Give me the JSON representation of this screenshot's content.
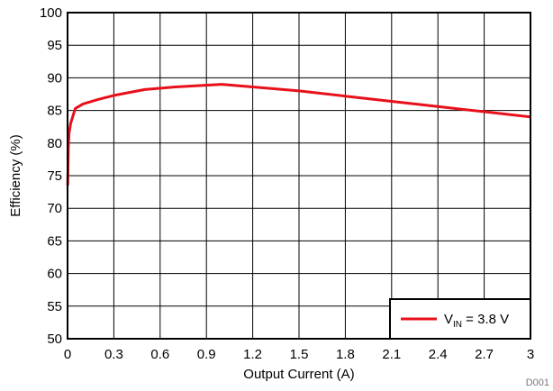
{
  "chart_data": {
    "type": "line",
    "xlabel": "Output Current (A)",
    "ylabel": "Efficiency (%)",
    "xlim": [
      0,
      3
    ],
    "ylim": [
      50,
      100
    ],
    "xticks": [
      "0",
      "0.3",
      "0.6",
      "0.9",
      "1.2",
      "1.5",
      "1.8",
      "2.1",
      "2.4",
      "2.7",
      "3"
    ],
    "yticks": [
      "50",
      "55",
      "60",
      "65",
      "70",
      "75",
      "80",
      "85",
      "90",
      "95",
      "100"
    ],
    "grid": true,
    "legend_position": "bottom-right",
    "figure_id": "D001",
    "series": [
      {
        "name": "V_IN = 3.8 V",
        "legend": {
          "main": "V",
          "sub": "IN",
          "rest": " = 3.8 V"
        },
        "color": "#e8101a",
        "x": [
          0.001,
          0.005,
          0.01,
          0.02,
          0.05,
          0.1,
          0.2,
          0.3,
          0.5,
          0.7,
          1.0,
          1.2,
          1.5,
          1.8,
          2.1,
          2.4,
          2.7,
          3.0
        ],
        "y": [
          73.5,
          79.5,
          81.5,
          83.0,
          85.3,
          86.0,
          86.7,
          87.3,
          88.2,
          88.6,
          89.0,
          88.6,
          88.0,
          87.2,
          86.4,
          85.6,
          84.8,
          84.0
        ]
      }
    ]
  }
}
